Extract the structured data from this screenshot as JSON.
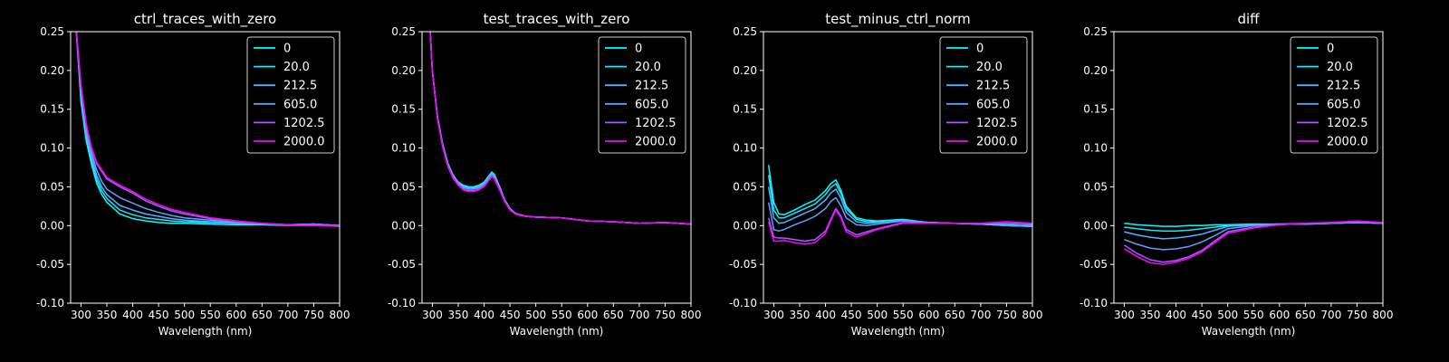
{
  "figure": {
    "background": "#000000",
    "foreground": "#ffffff"
  },
  "legend": {
    "position": "top-right",
    "labels": [
      "0",
      "20.0",
      "212.5",
      "605.0",
      "1202.5",
      "2000.0"
    ],
    "colors": [
      "#00ffff",
      "#1ae5ff",
      "#49b6ff",
      "#5ea1ff",
      "#a35cff",
      "#ff00ff"
    ]
  },
  "chart_data": [
    {
      "type": "line",
      "title": "ctrl_traces_with_zero",
      "xlabel": "Wavelength (nm)",
      "ylabel": "",
      "xlim": [
        280,
        800
      ],
      "ylim": [
        -0.1,
        0.25
      ],
      "xticks": [
        300,
        350,
        400,
        450,
        500,
        550,
        600,
        650,
        700,
        750,
        800
      ],
      "yticks": [
        -0.1,
        -0.05,
        0.0,
        0.05,
        0.1,
        0.15,
        0.2,
        0.25
      ],
      "grid": false,
      "x": [
        290,
        300,
        310,
        320,
        330,
        340,
        350,
        375,
        400,
        425,
        450,
        475,
        500,
        550,
        600,
        650,
        700,
        750,
        800
      ],
      "series": [
        {
          "name": "0",
          "values": [
            0.26,
            0.16,
            0.11,
            0.08,
            0.055,
            0.04,
            0.03,
            0.015,
            0.009,
            0.006,
            0.004,
            0.003,
            0.003,
            0.002,
            0.001,
            0.001,
            0.0,
            0.002,
            0.0
          ]
        },
        {
          "name": "20.0",
          "values": [
            0.26,
            0.165,
            0.115,
            0.085,
            0.06,
            0.045,
            0.035,
            0.02,
            0.014,
            0.01,
            0.008,
            0.006,
            0.005,
            0.004,
            0.003,
            0.002,
            0.001,
            0.002,
            0.0
          ]
        },
        {
          "name": "212.5",
          "values": [
            0.26,
            0.17,
            0.12,
            0.09,
            0.065,
            0.05,
            0.04,
            0.026,
            0.02,
            0.015,
            0.012,
            0.009,
            0.007,
            0.005,
            0.003,
            0.002,
            0.001,
            0.002,
            0.0
          ]
        },
        {
          "name": "605.0",
          "values": [
            0.26,
            0.175,
            0.125,
            0.095,
            0.072,
            0.057,
            0.047,
            0.036,
            0.029,
            0.022,
            0.017,
            0.013,
            0.01,
            0.007,
            0.004,
            0.002,
            0.001,
            0.002,
            0.0
          ]
        },
        {
          "name": "1202.5",
          "values": [
            0.26,
            0.18,
            0.13,
            0.1,
            0.08,
            0.07,
            0.06,
            0.05,
            0.042,
            0.032,
            0.025,
            0.019,
            0.015,
            0.009,
            0.005,
            0.003,
            0.001,
            0.001,
            0.0
          ]
        },
        {
          "name": "2000.0",
          "values": [
            0.26,
            0.182,
            0.132,
            0.102,
            0.082,
            0.072,
            0.062,
            0.052,
            0.044,
            0.034,
            0.027,
            0.021,
            0.017,
            0.01,
            0.006,
            0.003,
            0.0,
            0.0,
            -0.001
          ]
        }
      ]
    },
    {
      "type": "line",
      "title": "test_traces_with_zero",
      "xlabel": "Wavelength (nm)",
      "ylabel": "",
      "xlim": [
        280,
        800
      ],
      "ylim": [
        -0.1,
        0.25
      ],
      "xticks": [
        300,
        350,
        400,
        450,
        500,
        550,
        600,
        650,
        700,
        750,
        800
      ],
      "yticks": [
        -0.1,
        -0.05,
        0.0,
        0.05,
        0.1,
        0.15,
        0.2,
        0.25
      ],
      "grid": false,
      "x": [
        295,
        300,
        310,
        320,
        330,
        340,
        350,
        360,
        370,
        380,
        390,
        400,
        410,
        415,
        420,
        430,
        440,
        450,
        460,
        470,
        480,
        500,
        550,
        600,
        650,
        700,
        750,
        800
      ],
      "series": [
        {
          "name": "0",
          "values": [
            0.26,
            0.2,
            0.14,
            0.105,
            0.08,
            0.065,
            0.056,
            0.052,
            0.05,
            0.05,
            0.052,
            0.056,
            0.065,
            0.069,
            0.066,
            0.05,
            0.033,
            0.022,
            0.016,
            0.014,
            0.012,
            0.011,
            0.01,
            0.006,
            0.005,
            0.003,
            0.004,
            0.002
          ]
        },
        {
          "name": "20.0",
          "values": [
            0.26,
            0.2,
            0.14,
            0.105,
            0.08,
            0.065,
            0.056,
            0.051,
            0.049,
            0.049,
            0.051,
            0.055,
            0.064,
            0.068,
            0.065,
            0.05,
            0.033,
            0.022,
            0.016,
            0.014,
            0.012,
            0.011,
            0.01,
            0.006,
            0.005,
            0.003,
            0.004,
            0.002
          ]
        },
        {
          "name": "212.5",
          "values": [
            0.26,
            0.2,
            0.14,
            0.104,
            0.079,
            0.064,
            0.055,
            0.05,
            0.048,
            0.048,
            0.05,
            0.054,
            0.063,
            0.067,
            0.064,
            0.049,
            0.032,
            0.021,
            0.016,
            0.014,
            0.012,
            0.011,
            0.01,
            0.006,
            0.005,
            0.003,
            0.004,
            0.002
          ]
        },
        {
          "name": "605.0",
          "values": [
            0.26,
            0.2,
            0.139,
            0.103,
            0.078,
            0.063,
            0.054,
            0.049,
            0.047,
            0.047,
            0.049,
            0.053,
            0.062,
            0.066,
            0.063,
            0.048,
            0.032,
            0.021,
            0.016,
            0.014,
            0.012,
            0.011,
            0.01,
            0.006,
            0.005,
            0.003,
            0.004,
            0.002
          ]
        },
        {
          "name": "1202.5",
          "values": [
            0.26,
            0.2,
            0.138,
            0.102,
            0.077,
            0.062,
            0.053,
            0.047,
            0.045,
            0.045,
            0.047,
            0.051,
            0.06,
            0.064,
            0.061,
            0.047,
            0.031,
            0.021,
            0.016,
            0.014,
            0.012,
            0.011,
            0.01,
            0.006,
            0.005,
            0.003,
            0.004,
            0.002
          ]
        },
        {
          "name": "2000.0",
          "values": [
            0.26,
            0.2,
            0.138,
            0.101,
            0.076,
            0.061,
            0.052,
            0.046,
            0.044,
            0.044,
            0.046,
            0.05,
            0.059,
            0.063,
            0.06,
            0.046,
            0.031,
            0.02,
            0.015,
            0.013,
            0.012,
            0.011,
            0.01,
            0.006,
            0.005,
            0.003,
            0.004,
            0.002
          ]
        }
      ]
    },
    {
      "type": "line",
      "title": "test_minus_ctrl_norm",
      "xlabel": "Wavelength (nm)",
      "ylabel": "",
      "xlim": [
        280,
        800
      ],
      "ylim": [
        -0.1,
        0.25
      ],
      "xticks": [
        300,
        350,
        400,
        450,
        500,
        550,
        600,
        650,
        700,
        750,
        800
      ],
      "yticks": [
        -0.1,
        -0.05,
        0.0,
        0.05,
        0.1,
        0.15,
        0.2,
        0.25
      ],
      "grid": false,
      "x": [
        290,
        300,
        310,
        320,
        340,
        360,
        380,
        400,
        410,
        420,
        430,
        440,
        460,
        480,
        500,
        550,
        600,
        650,
        700,
        750,
        800
      ],
      "series": [
        {
          "name": "0",
          "values": [
            0.078,
            0.03,
            0.015,
            0.014,
            0.02,
            0.027,
            0.033,
            0.045,
            0.054,
            0.059,
            0.045,
            0.025,
            0.01,
            0.007,
            0.006,
            0.008,
            0.004,
            0.003,
            0.002,
            0.0,
            -0.001
          ]
        },
        {
          "name": "20.0",
          "values": [
            0.065,
            0.02,
            0.01,
            0.01,
            0.016,
            0.022,
            0.028,
            0.04,
            0.049,
            0.054,
            0.041,
            0.022,
            0.008,
            0.005,
            0.005,
            0.007,
            0.004,
            0.003,
            0.002,
            0.0,
            -0.001
          ]
        },
        {
          "name": "212.5",
          "values": [
            0.05,
            0.01,
            0.003,
            0.004,
            0.01,
            0.016,
            0.022,
            0.033,
            0.042,
            0.047,
            0.035,
            0.017,
            0.005,
            0.003,
            0.004,
            0.007,
            0.004,
            0.003,
            0.002,
            0.0,
            -0.001
          ]
        },
        {
          "name": "605.0",
          "values": [
            0.03,
            -0.005,
            -0.007,
            -0.005,
            0.001,
            0.006,
            0.012,
            0.022,
            0.031,
            0.036,
            0.025,
            0.01,
            0.001,
            0.0,
            0.002,
            0.006,
            0.004,
            0.003,
            0.002,
            0.002,
            0.001
          ]
        },
        {
          "name": "1202.5",
          "values": [
            0.01,
            -0.015,
            -0.016,
            -0.016,
            -0.018,
            -0.02,
            -0.018,
            -0.007,
            0.008,
            0.022,
            0.012,
            -0.005,
            -0.012,
            -0.008,
            -0.004,
            0.004,
            0.003,
            0.003,
            0.003,
            0.004,
            0.003
          ]
        },
        {
          "name": "2000.0",
          "values": [
            0.005,
            -0.02,
            -0.02,
            -0.019,
            -0.022,
            -0.024,
            -0.022,
            -0.01,
            0.006,
            0.02,
            0.01,
            -0.008,
            -0.015,
            -0.01,
            -0.005,
            0.003,
            0.003,
            0.003,
            0.003,
            0.005,
            0.003
          ]
        }
      ]
    },
    {
      "type": "line",
      "title": "diff",
      "xlabel": "Wavelength (nm)",
      "ylabel": "",
      "xlim": [
        280,
        800
      ],
      "ylim": [
        -0.1,
        0.25
      ],
      "xticks": [
        300,
        350,
        400,
        450,
        500,
        550,
        600,
        650,
        700,
        750,
        800
      ],
      "yticks": [
        -0.1,
        -0.05,
        0.0,
        0.05,
        0.1,
        0.15,
        0.2,
        0.25
      ],
      "grid": false,
      "x": [
        300,
        325,
        350,
        375,
        400,
        425,
        450,
        475,
        500,
        550,
        600,
        650,
        700,
        750,
        800
      ],
      "series": [
        {
          "name": "0",
          "values": [
            0.003,
            0.001,
            0.0,
            -0.001,
            -0.001,
            0.0,
            0.0,
            0.001,
            0.001,
            0.002,
            0.002,
            0.002,
            0.003,
            0.004,
            0.003
          ]
        },
        {
          "name": "20.0",
          "values": [
            -0.002,
            -0.004,
            -0.006,
            -0.007,
            -0.007,
            -0.006,
            -0.004,
            -0.002,
            0.0,
            0.001,
            0.002,
            0.002,
            0.003,
            0.004,
            0.003
          ]
        },
        {
          "name": "212.5",
          "values": [
            -0.008,
            -0.012,
            -0.015,
            -0.017,
            -0.016,
            -0.014,
            -0.011,
            -0.006,
            -0.001,
            0.001,
            0.002,
            0.002,
            0.003,
            0.004,
            0.003
          ]
        },
        {
          "name": "605.0",
          "values": [
            -0.018,
            -0.024,
            -0.029,
            -0.031,
            -0.03,
            -0.027,
            -0.021,
            -0.013,
            -0.004,
            0.0,
            0.002,
            0.003,
            0.003,
            0.004,
            0.003
          ]
        },
        {
          "name": "1202.5",
          "values": [
            -0.025,
            -0.036,
            -0.044,
            -0.047,
            -0.045,
            -0.04,
            -0.032,
            -0.02,
            -0.008,
            -0.002,
            0.001,
            0.003,
            0.004,
            0.005,
            0.004
          ]
        },
        {
          "name": "2000.0",
          "values": [
            -0.03,
            -0.04,
            -0.048,
            -0.05,
            -0.047,
            -0.042,
            -0.034,
            -0.022,
            -0.01,
            -0.003,
            0.001,
            0.003,
            0.004,
            0.006,
            0.004
          ]
        }
      ]
    }
  ]
}
